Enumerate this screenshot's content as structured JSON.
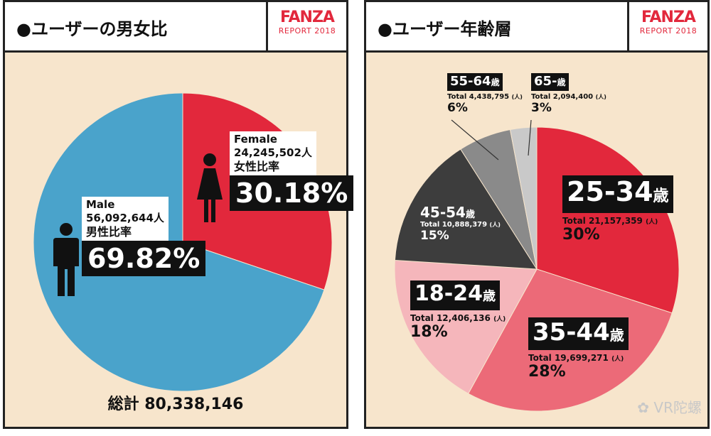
{
  "gender_panel": {
    "title": "●ユーザーの男女比",
    "logo_main": "FANZA",
    "logo_sub": "REPORT 2018",
    "female": {
      "label": "Female",
      "count": "24,245,502人",
      "ratio_label": "女性比率",
      "percent": "30.18%"
    },
    "male": {
      "label": "Male",
      "count": "56,092,644人",
      "ratio_label": "男性比率",
      "percent": "69.82%"
    },
    "total": "総計 80,338,146"
  },
  "age_panel": {
    "title": "●ユーザー年齢層",
    "logo_main": "FANZA",
    "logo_sub": "REPORT 2018",
    "groups": [
      {
        "name": "25-34",
        "unit": "歳",
        "total": "Total 21,157,359",
        "total_unit": "(人)",
        "percent": "30%"
      },
      {
        "name": "35-44",
        "unit": "歳",
        "total": "Total 19,699,271",
        "total_unit": "(人)",
        "percent": "28%"
      },
      {
        "name": "18-24",
        "unit": "歳",
        "total": "Total 12,406,136",
        "total_unit": "(人)",
        "percent": "18%"
      },
      {
        "name": "45-54",
        "unit": "歳",
        "total": "Total 10,888,379",
        "total_unit": "(人)",
        "percent": "15%"
      },
      {
        "name": "55-64",
        "unit": "歳",
        "total": "Total 4,438,795",
        "total_unit": "(人)",
        "percent": "6%"
      },
      {
        "name": "65-",
        "unit": "歳",
        "total": "Total 2,094,400",
        "total_unit": "(人)",
        "percent": "3%"
      }
    ]
  },
  "watermark": "VR陀螺",
  "colors": {
    "female": "#e2283c",
    "male": "#4aa3cb",
    "age_25_34": "#e2283c",
    "age_35_44": "#ec6a78",
    "age_18_24": "#f5b6bb",
    "age_45_54": "#3d3d3d",
    "age_55_64": "#8a8a8a",
    "age_65": "#c9c9c9",
    "background": "#f7e5cc"
  },
  "chart_data": [
    {
      "type": "pie",
      "title": "●ユーザーの男女比",
      "categories": [
        "Female",
        "Male"
      ],
      "values": [
        30.18,
        69.82
      ],
      "counts": [
        24245502,
        56092644
      ],
      "total": 80338146
    },
    {
      "type": "pie",
      "title": "●ユーザー年齢層",
      "categories": [
        "25-34歳",
        "35-44歳",
        "18-24歳",
        "45-54歳",
        "55-64歳",
        "65-歳"
      ],
      "values": [
        30,
        28,
        18,
        15,
        6,
        3
      ],
      "counts": [
        21157359,
        19699271,
        12406136,
        10888379,
        4438795,
        2094400
      ]
    }
  ]
}
